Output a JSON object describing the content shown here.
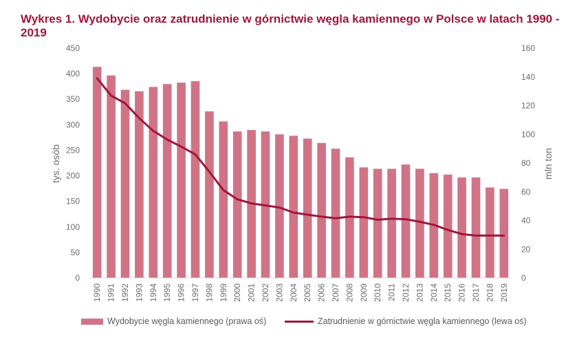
{
  "colors": {
    "bar": "#d17386",
    "line": "#a0163a",
    "title": "#a0163a",
    "grid": "#d9d9d9"
  },
  "chart_data": {
    "type": "bar",
    "title": "Wykres 1. Wydobycie oraz zatrudnienie w górnictwie węgla kamiennego w Polsce w latach 1990 - 2019",
    "left_axis_label": "tys. osób",
    "right_axis_label": "mln ton",
    "left_ylim": [
      0,
      450
    ],
    "left_ticks": [
      0,
      50,
      100,
      150,
      200,
      250,
      300,
      350,
      400,
      450
    ],
    "right_ylim": [
      0,
      160
    ],
    "right_ticks": [
      0,
      20,
      40,
      60,
      80,
      100,
      120,
      140,
      160
    ],
    "grid": false,
    "legend_position": "bottom",
    "categories": [
      "1990",
      "1991",
      "1992",
      "1993",
      "1994",
      "1995",
      "1996",
      "1997",
      "1998",
      "1999",
      "2000",
      "2001",
      "2002",
      "2003",
      "2004",
      "2005",
      "2006",
      "2007",
      "2008",
      "2009",
      "2010",
      "2011",
      "2012",
      "2013",
      "2014",
      "2015",
      "2016",
      "2017",
      "2018",
      "2019"
    ],
    "series": [
      {
        "name": "Wydobycie węgla kamiennego (prawa oś)",
        "type": "bar",
        "axis": "right",
        "values": [
          147,
          141,
          131,
          130,
          133,
          135,
          136,
          137,
          116,
          109,
          102,
          103,
          102,
          100,
          99,
          97,
          94,
          90,
          84,
          77,
          76,
          76,
          79,
          76,
          73,
          72,
          70,
          70,
          63,
          62
        ]
      },
      {
        "name": "Zatrudnienie w górnictwie węgla kamiennego (lewa oś)",
        "type": "line",
        "axis": "left",
        "values": [
          391,
          357,
          342,
          313,
          288,
          271,
          257,
          242,
          208,
          172,
          154,
          146,
          142,
          138,
          128,
          124,
          120,
          117,
          120,
          119,
          114,
          116,
          115,
          110,
          104,
          94,
          86,
          83,
          83,
          83
        ]
      }
    ]
  }
}
